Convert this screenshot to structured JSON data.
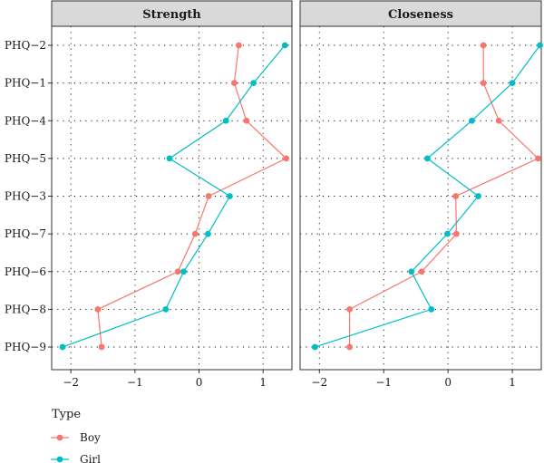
{
  "chart_data": {
    "type": "line",
    "categories": [
      "PHQ−2",
      "PHQ−1",
      "PHQ−4",
      "PHQ−5",
      "PHQ−3",
      "PHQ−7",
      "PHQ−6",
      "PHQ−8",
      "PHQ−9"
    ],
    "xlim": [
      -2.3,
      1.45
    ],
    "xticks": [
      -2,
      -1,
      0,
      1
    ],
    "xtick_labels": [
      "−2",
      "−1",
      "0",
      "1"
    ],
    "grid": true,
    "legend": {
      "title": "Type",
      "placement": "bottom-left",
      "entries": [
        {
          "label": "Boy",
          "color": "#F8766D"
        },
        {
          "label": "Girl",
          "color": "#00BFC4"
        }
      ]
    },
    "panels": [
      {
        "title": "Strength",
        "series": [
          {
            "name": "Boy",
            "color": "#F8766D",
            "values": [
              0.62,
              0.55,
              0.74,
              1.36,
              0.15,
              -0.06,
              -0.33,
              -1.58,
              -1.52
            ]
          },
          {
            "name": "Girl",
            "color": "#00BFC4",
            "values": [
              1.34,
              0.85,
              0.42,
              -0.46,
              0.48,
              0.14,
              -0.24,
              -0.52,
              -2.13
            ]
          }
        ]
      },
      {
        "title": "Closeness",
        "series": [
          {
            "name": "Boy",
            "color": "#F8766D",
            "values": [
              0.55,
              0.55,
              0.79,
              1.4,
              0.12,
              0.13,
              -0.41,
              -1.53,
              -1.53
            ]
          },
          {
            "name": "Girl",
            "color": "#00BFC4",
            "values": [
              1.43,
              1.0,
              0.37,
              -0.32,
              0.47,
              -0.01,
              -0.57,
              -0.26,
              -2.07
            ]
          }
        ]
      }
    ]
  }
}
